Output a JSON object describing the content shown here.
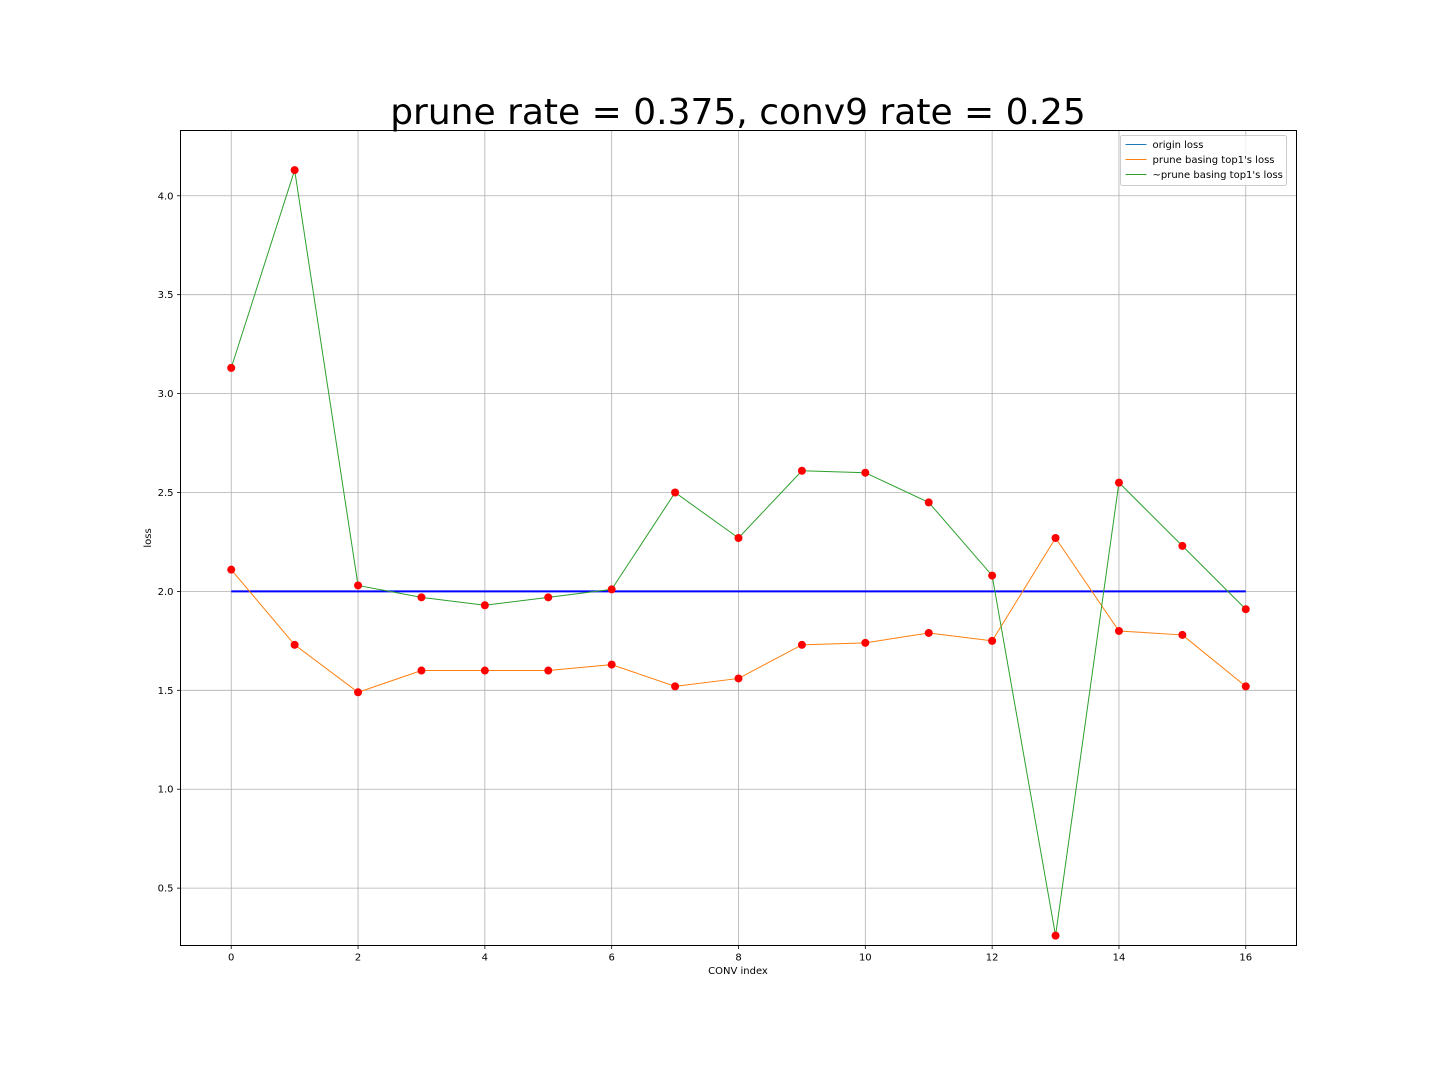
{
  "chart_data": {
    "type": "line",
    "title": "prune rate = 0.375, conv9 rate = 0.25",
    "xlabel": "CONV index",
    "ylabel": "loss",
    "xlim": [
      -0.8,
      16.8
    ],
    "ylim": [
      0.21,
      4.33
    ],
    "x_ticks": [
      0,
      2,
      4,
      6,
      8,
      10,
      12,
      14,
      16
    ],
    "y_ticks": [
      0.5,
      1.0,
      1.5,
      2.0,
      2.5,
      3.0,
      3.5,
      4.0
    ],
    "grid": true,
    "legend_position": "top-right",
    "x": [
      0,
      1,
      2,
      3,
      4,
      5,
      6,
      7,
      8,
      9,
      10,
      11,
      12,
      13,
      14,
      15,
      16
    ],
    "series": [
      {
        "name": "origin loss",
        "color": "#0000ff",
        "legend_color": "#1f77b4",
        "values": [
          2.0,
          2.0,
          2.0,
          2.0,
          2.0,
          2.0,
          2.0,
          2.0,
          2.0,
          2.0,
          2.0,
          2.0,
          2.0,
          2.0,
          2.0,
          2.0,
          2.0
        ],
        "markers": false
      },
      {
        "name": "prune basing top1's loss",
        "color": "#ff7f0e",
        "values": [
          2.11,
          1.73,
          1.49,
          1.6,
          1.6,
          1.6,
          1.63,
          1.52,
          1.56,
          1.73,
          1.74,
          1.79,
          1.75,
          2.27,
          1.8,
          1.78,
          1.52
        ],
        "markers": true
      },
      {
        "name": "~prune basing top1's loss",
        "color": "#2ca02c",
        "values": [
          3.13,
          4.13,
          2.03,
          1.97,
          1.93,
          1.97,
          2.01,
          2.5,
          2.27,
          2.61,
          2.6,
          2.45,
          2.08,
          0.26,
          2.55,
          2.23,
          1.91
        ],
        "markers": true
      }
    ],
    "marker_color": "#ff0000"
  }
}
